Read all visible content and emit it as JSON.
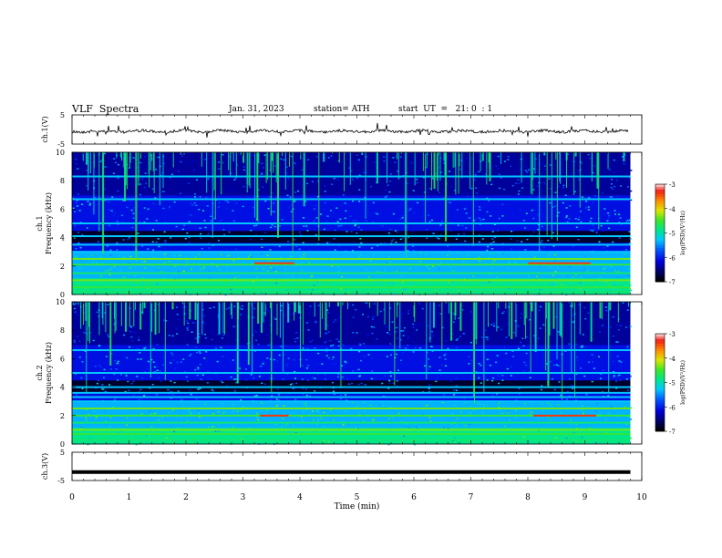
{
  "header": {
    "title": "VLF  Spectra",
    "date": "Jan. 31, 2023",
    "station": "station= ATH",
    "start_time": "start  UT  =   21: 0  : 1"
  },
  "chart_data": [
    {
      "type": "line",
      "panel": "ch1-waveform",
      "ylabel": "ch.1(V)",
      "ylim": [
        -5,
        5
      ],
      "yticks": [
        "5",
        "-5"
      ],
      "xlim": [
        0,
        10
      ],
      "series": [
        {
          "style": "noisy waveform around",
          "baseline": 0
        }
      ],
      "color": "#000000"
    },
    {
      "type": "heatmap",
      "panel": "ch1-spectrogram",
      "ylabel": "Frequency  (kHz)",
      "channel_label": "ch.1",
      "ylim": [
        0,
        10
      ],
      "yticks": [
        "0",
        "2",
        "4",
        "6",
        "8",
        "10"
      ],
      "xlim": [
        0,
        9.8
      ],
      "colorbar": {
        "label": "log(PSD)(V²/Hz)",
        "ticks": [
          "-3",
          "-4",
          "-5",
          "-6",
          "-7"
        ],
        "range": [
          -7,
          -3
        ]
      },
      "horizontal_bands_khz": [
        0.2,
        0.5,
        1.0,
        1.5,
        2.1,
        2.5,
        3.0,
        3.5,
        4.1,
        5.0,
        6.7,
        8.3
      ],
      "red_segments": [
        {
          "x": [
            3.2,
            3.9
          ],
          "y_khz": 2.2
        },
        {
          "x": [
            8.0,
            9.1
          ],
          "y_khz": 2.2
        }
      ]
    },
    {
      "type": "heatmap",
      "panel": "ch2-spectrogram",
      "ylabel": "Frequency  (kHz)",
      "channel_label": "ch.2",
      "ylim": [
        0,
        10
      ],
      "yticks": [
        "0",
        "2",
        "4",
        "6",
        "8",
        "10"
      ],
      "xlim": [
        0,
        9.8
      ],
      "colorbar": {
        "label": "log(PSD)(V²/Hz)",
        "ticks": [
          "-3",
          "-4",
          "-5",
          "-6",
          "-7"
        ],
        "range": [
          -7,
          -3
        ]
      },
      "horizontal_bands_khz": [
        0.3,
        0.7,
        1.0,
        1.5,
        2.0,
        2.5,
        3.0,
        3.3,
        3.6,
        4.0,
        5.0,
        6.6
      ],
      "red_segments": [
        {
          "x": [
            3.3,
            3.8
          ],
          "y_khz": 2.0
        },
        {
          "x": [
            8.1,
            9.2
          ],
          "y_khz": 2.0
        }
      ]
    },
    {
      "type": "line",
      "panel": "ch3-waveform",
      "ylabel": "ch.3(V)",
      "ylim": [
        -5,
        5
      ],
      "yticks": [
        "5",
        "-5"
      ],
      "xlim": [
        0,
        10
      ],
      "series": [
        {
          "style": "flat",
          "values": [
            -2,
            -2
          ]
        }
      ],
      "xlabel": "Time  (min)",
      "xticks": [
        "0",
        "1",
        "2",
        "3",
        "4",
        "5",
        "6",
        "7",
        "8",
        "9",
        "10"
      ]
    }
  ]
}
